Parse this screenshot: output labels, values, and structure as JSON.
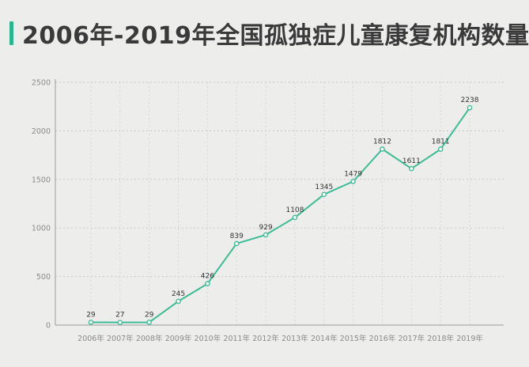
{
  "header": {
    "title": "2006年-2019年全国孤独症儿童康复机构数量"
  },
  "colors": {
    "accent": "#2bb58f",
    "line": "#3dbb96",
    "background": "#ededec",
    "grid": "#c8c8c8",
    "axis": "#9a9a9a"
  },
  "chart_data": {
    "type": "line",
    "title": "2006年-2019年全国孤独症儿童康复机构数量",
    "xlabel": "",
    "ylabel": "",
    "categories": [
      "2006年",
      "2007年",
      "2008年",
      "2009年",
      "2010年",
      "2011年",
      "2012年",
      "2013年",
      "2014年",
      "2015年",
      "2016年",
      "2017年",
      "2018年",
      "2019年"
    ],
    "series": [
      {
        "values": [
          29,
          27,
          29,
          245,
          426,
          839,
          929,
          1108,
          1345,
          1479,
          1812,
          1611,
          1811,
          2238
        ]
      }
    ],
    "ylim": [
      0,
      2500
    ],
    "yticks": [
      0,
      500,
      1000,
      1500,
      2000,
      2500
    ],
    "grid": "horizontal dotted",
    "legend": "none"
  }
}
